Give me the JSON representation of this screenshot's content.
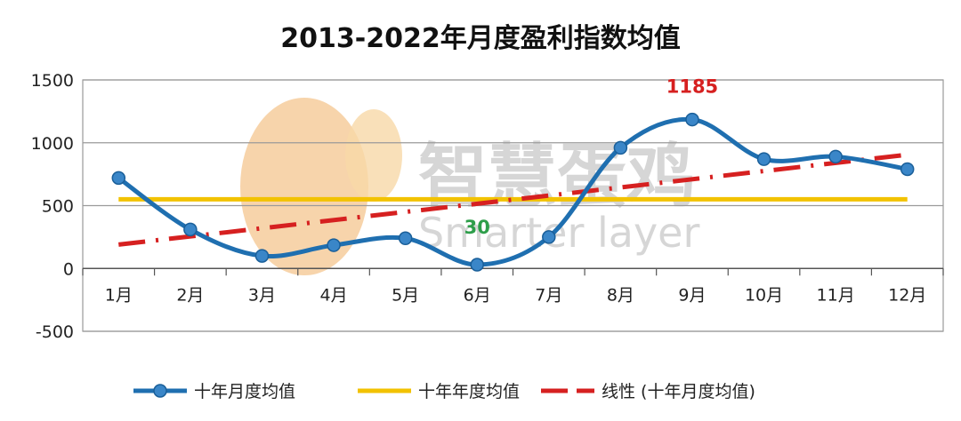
{
  "chart_data": {
    "type": "line",
    "title": "2013-2022年月度盈利指数均值",
    "categories": [
      "1月",
      "2月",
      "3月",
      "4月",
      "5月",
      "6月",
      "7月",
      "8月",
      "9月",
      "10月",
      "11月",
      "12月"
    ],
    "yticks": [
      1500,
      1000,
      500,
      0,
      -500
    ],
    "ylim": [
      -500,
      1500
    ],
    "grid": true,
    "legend_position": "bottom",
    "series": [
      {
        "name": "十年月度均值",
        "color": "#1f6fb0",
        "values": [
          720,
          310,
          100,
          185,
          240,
          30,
          250,
          960,
          1185,
          870,
          890,
          790
        ]
      },
      {
        "name": "十年年度均值",
        "color": "#f2c200",
        "values": [
          550,
          550,
          550,
          550,
          550,
          550,
          550,
          550,
          550,
          550,
          550,
          550
        ]
      },
      {
        "name": "线性 (十年月度均值)",
        "color": "#d62020",
        "values": [
          190,
          255,
          320,
          385,
          450,
          515,
          580,
          645,
          710,
          775,
          840,
          905
        ]
      }
    ],
    "annotations": [
      {
        "text": "1185",
        "category": "9月",
        "value": 1185,
        "color": "#d62020"
      },
      {
        "text": "30",
        "category": "6月",
        "value": 30,
        "color": "#2e9e4a"
      }
    ]
  },
  "watermark": {
    "cn": "智慧蛋鸡",
    "en": "Smarter layer"
  }
}
